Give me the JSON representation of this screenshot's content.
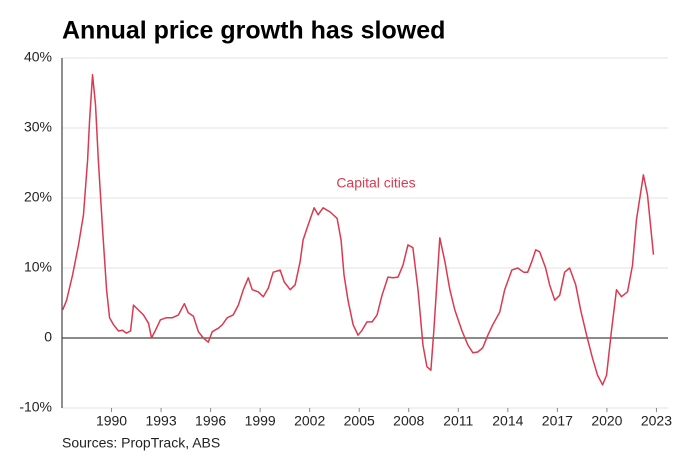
{
  "chart_data": {
    "type": "line",
    "title": "Annual price growth has slowed",
    "source": "Sources: PropTrack, ABS",
    "xlim": [
      1987,
      2023.7
    ],
    "xticks": [
      1990,
      1993,
      1996,
      1999,
      2002,
      2005,
      2008,
      2011,
      2014,
      2017,
      2020,
      2023
    ],
    "ylim": [
      -10,
      40
    ],
    "yticks": [
      {
        "value": -10,
        "label": "-10%"
      },
      0,
      {
        "value": 10,
        "label": "10%"
      },
      {
        "value": 20,
        "label": "20%"
      },
      {
        "value": 30,
        "label": "30%"
      },
      {
        "value": 40,
        "label": "40%"
      }
    ],
    "grid": true,
    "x": [
      1987.04,
      1987.28,
      1987.64,
      1988.0,
      1988.3,
      1988.55,
      1988.67,
      1988.85,
      1989.03,
      1989.2,
      1989.46,
      1989.7,
      1989.88,
      1990.12,
      1990.42,
      1990.66,
      1990.9,
      1991.15,
      1991.33,
      1991.63,
      1991.93,
      1992.24,
      1992.42,
      1992.66,
      1992.96,
      1993.32,
      1993.69,
      1994.05,
      1994.41,
      1994.65,
      1994.96,
      1995.26,
      1995.56,
      1995.86,
      1996.1,
      1996.47,
      1996.71,
      1997.01,
      1997.37,
      1997.68,
      1997.98,
      1998.28,
      1998.52,
      1998.88,
      1999.19,
      1999.49,
      1999.79,
      2000.21,
      2000.46,
      2000.82,
      2001.12,
      2001.42,
      2001.6,
      2001.9,
      2002.27,
      2002.51,
      2002.81,
      2003.24,
      2003.66,
      2003.9,
      2004.08,
      2004.32,
      2004.63,
      2004.93,
      2005.17,
      2005.47,
      2005.78,
      2006.08,
      2006.38,
      2006.74,
      2007.04,
      2007.35,
      2007.65,
      2007.95,
      2008.25,
      2008.56,
      2008.86,
      2009.1,
      2009.34,
      2009.52,
      2009.88,
      2010.19,
      2010.49,
      2010.79,
      2011.21,
      2011.58,
      2011.88,
      2012.18,
      2012.48,
      2012.79,
      2013.09,
      2013.51,
      2013.81,
      2014.24,
      2014.6,
      2014.96,
      2015.2,
      2015.45,
      2015.69,
      2015.93,
      2016.29,
      2016.53,
      2016.84,
      2017.14,
      2017.44,
      2017.74,
      2018.11,
      2018.41,
      2018.77,
      2019.13,
      2019.43,
      2019.74,
      2019.98,
      2020.28,
      2020.58,
      2020.88,
      2021.25,
      2021.55,
      2021.79,
      2022.21,
      2022.46,
      2022.82
    ],
    "series": [
      {
        "name": "Capital cities",
        "color": "#d93a50",
        "values": [
          4.0,
          5.4,
          9,
          13.3,
          17.6,
          25.4,
          31.1,
          37.6,
          33.3,
          25.4,
          15.4,
          6.9,
          2.9,
          1.9,
          1.0,
          1.1,
          0.7,
          1.0,
          4.7,
          4.0,
          3.3,
          2.1,
          0,
          1.1,
          2.6,
          2.9,
          2.9,
          3.3,
          4.9,
          3.6,
          3.1,
          0.9,
          0,
          -0.6,
          0.9,
          1.4,
          1.9,
          2.9,
          3.3,
          4.7,
          6.9,
          8.6,
          6.9,
          6.6,
          5.9,
          7.1,
          9.4,
          9.7,
          8.0,
          6.9,
          7.6,
          10.9,
          14.0,
          16.1,
          18.6,
          17.6,
          18.6,
          18.0,
          17.1,
          14.0,
          9.0,
          5.4,
          1.9,
          0.4,
          1.1,
          2.3,
          2.3,
          3.3,
          6.1,
          8.7,
          8.6,
          8.7,
          10.4,
          13.3,
          12.9,
          6.9,
          -1.0,
          -4.1,
          -4.6,
          1.1,
          14.3,
          10.9,
          6.9,
          4.0,
          1.1,
          -1.0,
          -2.1,
          -2.0,
          -1.4,
          0.4,
          1.9,
          3.7,
          6.9,
          9.7,
          10.0,
          9.4,
          9.4,
          10.9,
          12.6,
          12.3,
          10.0,
          7.6,
          5.4,
          6.1,
          9.4,
          10.0,
          7.6,
          4.0,
          0.4,
          -2.9,
          -5.3,
          -6.7,
          -5.3,
          1.1,
          6.9,
          5.9,
          6.6,
          10.4,
          16.9,
          23.3,
          20.4,
          11.9
        ]
      }
    ]
  }
}
